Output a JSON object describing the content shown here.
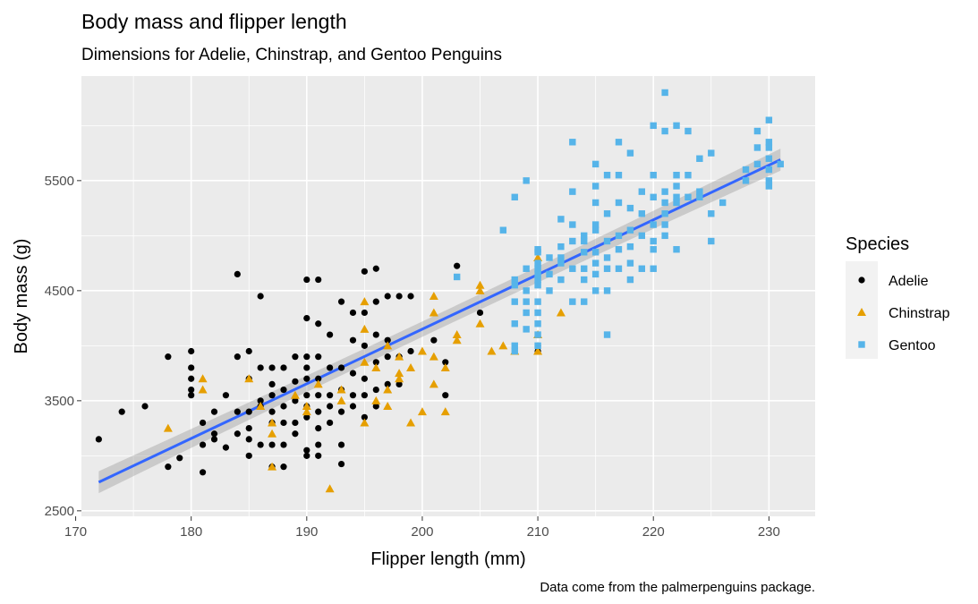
{
  "chart_data": {
    "type": "scatter",
    "title": "Body mass and flipper length",
    "subtitle": "Dimensions for Adelie, Chinstrap, and Gentoo Penguins",
    "xlabel": "Flipper length (mm)",
    "ylabel": "Body mass (g)",
    "caption": "Data come from the palmerpenguins package.",
    "xlim": [
      170.5,
      234
    ],
    "ylim": [
      2450,
      6450
    ],
    "x_ticks": [
      170,
      180,
      190,
      200,
      210,
      220,
      230
    ],
    "y_ticks": [
      2500,
      3500,
      4500,
      5500
    ],
    "grid": true,
    "legend": {
      "title": "Species",
      "placement": "right"
    },
    "trend": {
      "type": "linear",
      "x1": 172,
      "y1": 2760,
      "x2": 231,
      "y2": 5690,
      "band": 100
    },
    "series": [
      {
        "name": "Adelie",
        "color": "#000000",
        "shape": "circle",
        "points": [
          [
            172,
            3150
          ],
          [
            174,
            3400
          ],
          [
            176,
            3450
          ],
          [
            178,
            3900
          ],
          [
            178,
            2900
          ],
          [
            179,
            2980
          ],
          [
            180,
            3950
          ],
          [
            180,
            3800
          ],
          [
            180,
            3700
          ],
          [
            180,
            3550
          ],
          [
            180,
            3600
          ],
          [
            181,
            3300
          ],
          [
            181,
            2850
          ],
          [
            181,
            3100
          ],
          [
            182,
            3400
          ],
          [
            182,
            3200
          ],
          [
            182,
            3150
          ],
          [
            183,
            3550
          ],
          [
            183,
            3075
          ],
          [
            184,
            4650
          ],
          [
            184,
            3900
          ],
          [
            184,
            3200
          ],
          [
            184,
            3400
          ],
          [
            185,
            3950
          ],
          [
            185,
            3700
          ],
          [
            185,
            3400
          ],
          [
            185,
            3150
          ],
          [
            185,
            3000
          ],
          [
            185,
            3250
          ],
          [
            186,
            4450
          ],
          [
            186,
            3800
          ],
          [
            186,
            3500
          ],
          [
            186,
            3100
          ],
          [
            186,
            3450
          ],
          [
            187,
            3800
          ],
          [
            187,
            3650
          ],
          [
            187,
            3550
          ],
          [
            187,
            3400
          ],
          [
            187,
            3300
          ],
          [
            187,
            3100
          ],
          [
            187,
            2900
          ],
          [
            188,
            3800
          ],
          [
            188,
            3600
          ],
          [
            188,
            3300
          ],
          [
            188,
            3100
          ],
          [
            188,
            2900
          ],
          [
            188,
            3450
          ],
          [
            189,
            3900
          ],
          [
            189,
            3500
          ],
          [
            189,
            3300
          ],
          [
            189,
            3200
          ],
          [
            189,
            3675
          ],
          [
            190,
            4600
          ],
          [
            190,
            4250
          ],
          [
            190,
            3900
          ],
          [
            190,
            3800
          ],
          [
            190,
            3700
          ],
          [
            190,
            3550
          ],
          [
            190,
            3450
          ],
          [
            190,
            3350
          ],
          [
            190,
            3050
          ],
          [
            190,
            3000
          ],
          [
            191,
            4600
          ],
          [
            191,
            4200
          ],
          [
            191,
            3900
          ],
          [
            191,
            3700
          ],
          [
            191,
            3550
          ],
          [
            191,
            3400
          ],
          [
            191,
            3100
          ],
          [
            191,
            3000
          ],
          [
            191,
            3250
          ],
          [
            192,
            4100
          ],
          [
            192,
            3800
          ],
          [
            192,
            3550
          ],
          [
            192,
            3450
          ],
          [
            192,
            3300
          ],
          [
            193,
            4400
          ],
          [
            193,
            3800
          ],
          [
            193,
            3600
          ],
          [
            193,
            3400
          ],
          [
            193,
            3100
          ],
          [
            193,
            2925
          ],
          [
            194,
            4300
          ],
          [
            194,
            4050
          ],
          [
            194,
            3750
          ],
          [
            194,
            3550
          ],
          [
            194,
            3450
          ],
          [
            195,
            4675
          ],
          [
            195,
            4300
          ],
          [
            195,
            4000
          ],
          [
            195,
            3700
          ],
          [
            195,
            3550
          ],
          [
            195,
            3350
          ],
          [
            196,
            4700
          ],
          [
            196,
            4400
          ],
          [
            196,
            4100
          ],
          [
            196,
            3850
          ],
          [
            196,
            3600
          ],
          [
            196,
            3450
          ],
          [
            197,
            4450
          ],
          [
            197,
            4050
          ],
          [
            197,
            3900
          ],
          [
            197,
            3650
          ],
          [
            198,
            4450
          ],
          [
            198,
            3900
          ],
          [
            198,
            3650
          ],
          [
            199,
            4450
          ],
          [
            199,
            3950
          ],
          [
            201,
            4050
          ],
          [
            202,
            3550
          ],
          [
            202,
            3850
          ],
          [
            203,
            4725
          ],
          [
            205,
            4300
          ],
          [
            210,
            4000
          ],
          [
            210,
            3950
          ]
        ]
      },
      {
        "name": "Chinstrap",
        "color": "#E69F00",
        "shape": "triangle",
        "points": [
          [
            178,
            3250
          ],
          [
            181,
            3700
          ],
          [
            181,
            3600
          ],
          [
            185,
            3700
          ],
          [
            186,
            3450
          ],
          [
            187,
            3300
          ],
          [
            187,
            3200
          ],
          [
            187,
            2900
          ],
          [
            189,
            3550
          ],
          [
            190,
            3400
          ],
          [
            190,
            3450
          ],
          [
            191,
            3650
          ],
          [
            192,
            2700
          ],
          [
            193,
            3600
          ],
          [
            193,
            3500
          ],
          [
            195,
            4400
          ],
          [
            195,
            4150
          ],
          [
            195,
            3850
          ],
          [
            195,
            3300
          ],
          [
            196,
            3800
          ],
          [
            196,
            3500
          ],
          [
            197,
            4000
          ],
          [
            197,
            3600
          ],
          [
            197,
            3450
          ],
          [
            198,
            3700
          ],
          [
            198,
            3900
          ],
          [
            198,
            3750
          ],
          [
            199,
            3300
          ],
          [
            199,
            3800
          ],
          [
            200,
            3400
          ],
          [
            200,
            3950
          ],
          [
            201,
            3650
          ],
          [
            201,
            3900
          ],
          [
            201,
            4450
          ],
          [
            201,
            4300
          ],
          [
            202,
            3400
          ],
          [
            202,
            3800
          ],
          [
            203,
            4100
          ],
          [
            203,
            4050
          ],
          [
            205,
            4550
          ],
          [
            205,
            4500
          ],
          [
            205,
            4200
          ],
          [
            206,
            3950
          ],
          [
            207,
            4000
          ],
          [
            208,
            3950
          ],
          [
            210,
            4800
          ],
          [
            210,
            4100
          ],
          [
            210,
            3950
          ],
          [
            212,
            4300
          ]
        ]
      },
      {
        "name": "Gentoo",
        "color": "#56B4E9",
        "shape": "square",
        "points": [
          [
            203,
            4625
          ],
          [
            207,
            5050
          ],
          [
            208,
            3950
          ],
          [
            208,
            5350
          ],
          [
            208,
            4600
          ],
          [
            208,
            4550
          ],
          [
            208,
            4400
          ],
          [
            208,
            4200
          ],
          [
            208,
            4000
          ],
          [
            209,
            5500
          ],
          [
            209,
            4700
          ],
          [
            209,
            4500
          ],
          [
            209,
            4400
          ],
          [
            209,
            4300
          ],
          [
            209,
            4150
          ],
          [
            210,
            4750
          ],
          [
            210,
            4700
          ],
          [
            210,
            4600
          ],
          [
            210,
            4550
          ],
          [
            210,
            4400
          ],
          [
            210,
            4300
          ],
          [
            210,
            4200
          ],
          [
            210,
            4100
          ],
          [
            210,
            4000
          ],
          [
            210,
            4850
          ],
          [
            210,
            4650
          ],
          [
            210,
            4875
          ],
          [
            211,
            4800
          ],
          [
            211,
            4650
          ],
          [
            211,
            4500
          ],
          [
            212,
            5150
          ],
          [
            212,
            4900
          ],
          [
            212,
            4800
          ],
          [
            212,
            4750
          ],
          [
            212,
            4600
          ],
          [
            213,
            5850
          ],
          [
            213,
            5400
          ],
          [
            213,
            5100
          ],
          [
            213,
            4950
          ],
          [
            213,
            4700
          ],
          [
            213,
            4400
          ],
          [
            214,
            5000
          ],
          [
            214,
            4950
          ],
          [
            214,
            4850
          ],
          [
            214,
            4700
          ],
          [
            214,
            4600
          ],
          [
            214,
            4400
          ],
          [
            215,
            5650
          ],
          [
            215,
            5450
          ],
          [
            215,
            5300
          ],
          [
            215,
            5100
          ],
          [
            215,
            5050
          ],
          [
            215,
            4850
          ],
          [
            215,
            4750
          ],
          [
            215,
            4650
          ],
          [
            215,
            4500
          ],
          [
            216,
            5550
          ],
          [
            216,
            5200
          ],
          [
            216,
            4950
          ],
          [
            216,
            4800
          ],
          [
            216,
            4700
          ],
          [
            216,
            4500
          ],
          [
            216,
            4100
          ],
          [
            217,
            5850
          ],
          [
            217,
            5550
          ],
          [
            217,
            5300
          ],
          [
            217,
            5000
          ],
          [
            217,
            4875
          ],
          [
            217,
            4700
          ],
          [
            218,
            5750
          ],
          [
            218,
            5250
          ],
          [
            218,
            5050
          ],
          [
            218,
            4900
          ],
          [
            218,
            4750
          ],
          [
            218,
            4600
          ],
          [
            219,
            5400
          ],
          [
            219,
            5200
          ],
          [
            219,
            5000
          ],
          [
            219,
            4700
          ],
          [
            220,
            6000
          ],
          [
            220,
            5550
          ],
          [
            220,
            5350
          ],
          [
            220,
            5100
          ],
          [
            220,
            4950
          ],
          [
            220,
            4875
          ],
          [
            220,
            4700
          ],
          [
            221,
            6300
          ],
          [
            221,
            5950
          ],
          [
            221,
            5400
          ],
          [
            221,
            5300
          ],
          [
            221,
            5200
          ],
          [
            221,
            5100
          ],
          [
            221,
            5000
          ],
          [
            222,
            6000
          ],
          [
            222,
            5550
          ],
          [
            222,
            5450
          ],
          [
            222,
            5350
          ],
          [
            222,
            5300
          ],
          [
            222,
            4875
          ],
          [
            223,
            5950
          ],
          [
            223,
            5550
          ],
          [
            223,
            5350
          ],
          [
            224,
            5700
          ],
          [
            224,
            5400
          ],
          [
            224,
            5350
          ],
          [
            225,
            5750
          ],
          [
            225,
            5200
          ],
          [
            225,
            4950
          ],
          [
            226,
            5300
          ],
          [
            228,
            5600
          ],
          [
            228,
            5500
          ],
          [
            229,
            5800
          ],
          [
            229,
            5650
          ],
          [
            229,
            5950
          ],
          [
            230,
            6050
          ],
          [
            230,
            5850
          ],
          [
            230,
            5800
          ],
          [
            230,
            5700
          ],
          [
            230,
            5600
          ],
          [
            230,
            5500
          ],
          [
            230,
            5450
          ],
          [
            231,
            5650
          ]
        ]
      }
    ]
  }
}
